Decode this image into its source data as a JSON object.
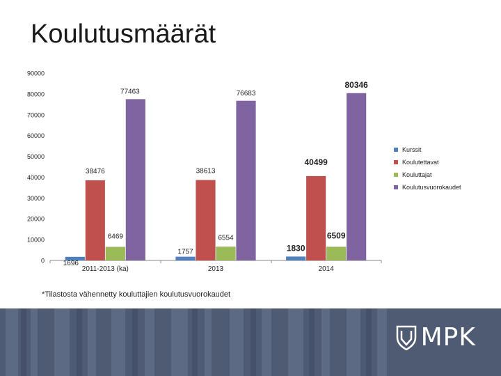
{
  "slide": {
    "title": "Koulutusmäärät",
    "footnote": "*Tilastosta vähennetty kouluttajien koulutusvuorokaudet",
    "logo_text": "MPK"
  },
  "chart_data": {
    "type": "bar",
    "categories": [
      "2011-2013 (ka)",
      "2013",
      "2014"
    ],
    "series": [
      {
        "name": "Kurssit",
        "color": "#4f81bd",
        "values": [
          1696,
          1757,
          1830
        ]
      },
      {
        "name": "Koulutettavat",
        "color": "#c0504d",
        "values": [
          38476,
          38613,
          40499
        ]
      },
      {
        "name": "Kouluttajat",
        "color": "#9bbb59",
        "values": [
          6469,
          6554,
          6509
        ]
      },
      {
        "name": "Koulutusvuorokaudet",
        "color": "#8064a2",
        "values": [
          77463,
          76683,
          80346
        ]
      }
    ],
    "data_labels": [
      [
        "1696",
        "38476",
        "6469",
        "77463"
      ],
      [
        "1757",
        "38613",
        "6554",
        "76683"
      ],
      [
        "1830",
        "40499",
        "6509",
        "80346"
      ]
    ],
    "ylim": [
      0,
      90000
    ],
    "yticks": [
      "0",
      "10000",
      "20000",
      "30000",
      "40000",
      "50000",
      "60000",
      "70000",
      "80000",
      "90000"
    ],
    "grid": false,
    "legend": "right"
  }
}
